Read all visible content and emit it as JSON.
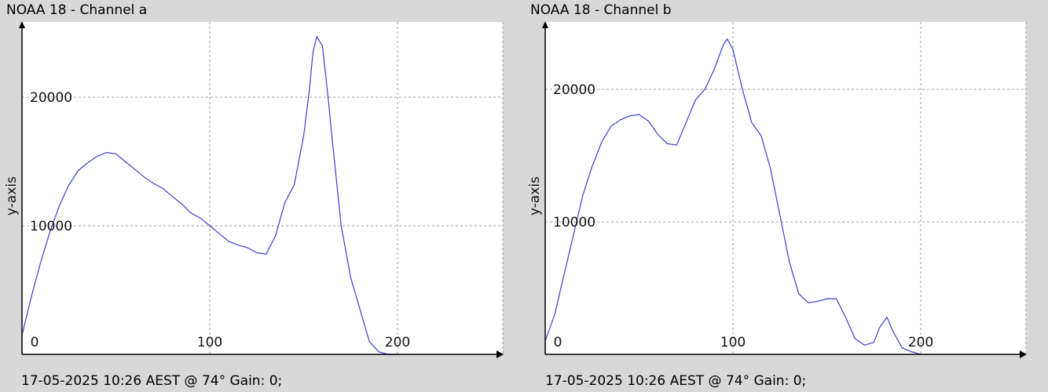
{
  "footer_text": "17-05-2025 10:26 AEST @ 74° Gain: 0;",
  "colors": {
    "line": "#3c3cd2",
    "grid": "#a0a0a0",
    "plot_bg": "#ffffff",
    "page_bg": "#d8d8d8"
  },
  "chart_data": [
    {
      "type": "line",
      "title": "NOAA 18 - Channel a",
      "xlabel": "",
      "ylabel": "y-axis",
      "xlim": [
        0,
        245
      ],
      "ylim": [
        0,
        25000
      ],
      "xticks": [
        0,
        100,
        200
      ],
      "yticks": [
        10000,
        20000
      ],
      "grid": true,
      "series": [
        {
          "x": [
            -5,
            0,
            5,
            10,
            15,
            20,
            25,
            30,
            35,
            40,
            45,
            50,
            55,
            60,
            65,
            70,
            75,
            80,
            85,
            90,
            95,
            100,
            105,
            110,
            115,
            120,
            125,
            130,
            135,
            140,
            145,
            150,
            153,
            155,
            157,
            160,
            163,
            165,
            170,
            175,
            180,
            185,
            190,
            195,
            200
          ],
          "values": [
            0,
            1500,
            4500,
            7200,
            9600,
            11600,
            13200,
            14300,
            14900,
            15400,
            15700,
            15600,
            15000,
            14400,
            13800,
            13300,
            12900,
            12300,
            11700,
            11000,
            10600,
            10000,
            9400,
            8800,
            8500,
            8300,
            7900,
            7800,
            9200,
            11800,
            13200,
            17000,
            20500,
            23500,
            24700,
            24000,
            20000,
            17000,
            10000,
            6000,
            3500,
            1000,
            200,
            0,
            0
          ]
        }
      ]
    },
    {
      "type": "line",
      "title": "NOAA 18 - Channel b",
      "xlabel": "",
      "ylabel": "y-axis",
      "xlim": [
        0,
        255
      ],
      "ylim": [
        0,
        25000
      ],
      "xticks": [
        0,
        100,
        200
      ],
      "yticks": [
        10000,
        20000
      ],
      "grid": true,
      "series": [
        {
          "x": [
            -5,
            0,
            5,
            10,
            15,
            20,
            25,
            30,
            35,
            40,
            45,
            50,
            55,
            60,
            65,
            70,
            75,
            80,
            85,
            90,
            95,
            97,
            100,
            105,
            110,
            115,
            120,
            125,
            130,
            135,
            140,
            145,
            150,
            155,
            160,
            165,
            170,
            175,
            178,
            182,
            185,
            190,
            195,
            200
          ],
          "values": [
            0,
            1000,
            3000,
            6000,
            9000,
            12000,
            14200,
            16000,
            17200,
            17700,
            18000,
            18100,
            17600,
            16600,
            15900,
            15800,
            17500,
            19200,
            20000,
            21500,
            23400,
            23800,
            23000,
            20000,
            17500,
            16500,
            14000,
            10500,
            7000,
            4600,
            3900,
            4000,
            4200,
            4200,
            2800,
            1200,
            700,
            900,
            2000,
            2800,
            1800,
            500,
            200,
            0
          ]
        }
      ]
    }
  ]
}
